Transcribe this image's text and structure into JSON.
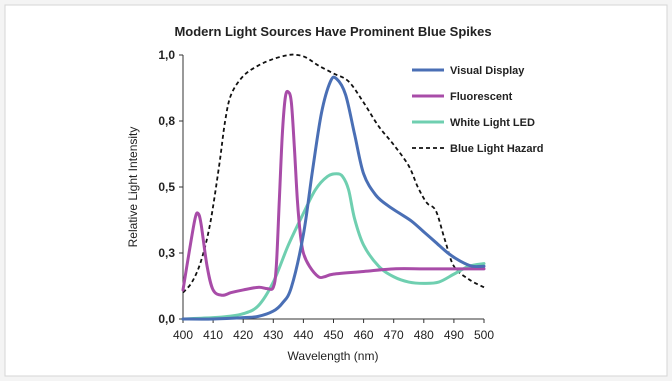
{
  "chart_data": {
    "type": "line",
    "title": "Modern Light Sources Have Prominent Blue Spikes",
    "xlabel": "Wavelength (nm)",
    "ylabel": "Relative Light Intensity",
    "xlim": [
      400,
      500
    ],
    "ylim": [
      0,
      1
    ],
    "x_ticks": [
      400,
      410,
      420,
      430,
      440,
      450,
      460,
      470,
      480,
      490,
      500
    ],
    "x_tick_labels": [
      "400",
      "410",
      "420",
      "430",
      "440",
      "450",
      "460",
      "470",
      "480",
      "490",
      "500"
    ],
    "y_ticks": [
      0,
      0.25,
      0.5,
      0.75,
      1
    ],
    "y_tick_labels": [
      "0,0",
      "0,3",
      "0,5",
      "0,8",
      "1,0"
    ],
    "grid": false,
    "legend_position": "top-right",
    "series": [
      {
        "name": "Visual Display",
        "color": "#4a6fb5",
        "dash": "solid",
        "x": [
          400,
          410,
          420,
          425,
          430,
          433,
          436,
          440,
          443,
          446,
          449,
          451,
          454,
          457,
          460,
          464,
          468,
          472,
          476,
          480,
          484,
          488,
          492,
          496,
          500
        ],
        "y": [
          0.0,
          0.0,
          0.005,
          0.01,
          0.03,
          0.06,
          0.12,
          0.32,
          0.56,
          0.78,
          0.9,
          0.91,
          0.85,
          0.7,
          0.55,
          0.47,
          0.43,
          0.4,
          0.37,
          0.33,
          0.29,
          0.25,
          0.22,
          0.2,
          0.2
        ]
      },
      {
        "name": "Fluorescent",
        "color": "#a84ca8",
        "dash": "solid",
        "x": [
          400,
          402,
          404,
          405,
          406,
          408,
          410,
          413,
          416,
          420,
          425,
          428,
          430,
          431,
          432,
          433,
          434,
          435,
          436,
          437,
          438,
          439,
          440,
          442,
          445,
          447,
          450,
          460,
          470,
          480,
          490,
          500
        ],
        "y": [
          0.11,
          0.25,
          0.38,
          0.4,
          0.36,
          0.2,
          0.11,
          0.09,
          0.1,
          0.11,
          0.12,
          0.115,
          0.12,
          0.2,
          0.45,
          0.7,
          0.84,
          0.86,
          0.82,
          0.65,
          0.45,
          0.32,
          0.25,
          0.2,
          0.16,
          0.16,
          0.17,
          0.18,
          0.19,
          0.19,
          0.19,
          0.19
        ]
      },
      {
        "name": "White Light LED",
        "color": "#6fcfb0",
        "dash": "solid",
        "x": [
          400,
          410,
          415,
          420,
          425,
          430,
          435,
          440,
          444,
          448,
          451,
          453,
          455,
          457,
          460,
          465,
          470,
          475,
          480,
          485,
          490,
          495,
          500
        ],
        "y": [
          0.0,
          0.005,
          0.01,
          0.02,
          0.05,
          0.14,
          0.28,
          0.4,
          0.49,
          0.54,
          0.55,
          0.54,
          0.49,
          0.38,
          0.28,
          0.2,
          0.16,
          0.14,
          0.135,
          0.14,
          0.17,
          0.2,
          0.21
        ]
      },
      {
        "name": "Blue Light Hazard",
        "color": "#111111",
        "dash": "dashed",
        "x": [
          400,
          403,
          406,
          409,
          412,
          414,
          416,
          420,
          425,
          430,
          435,
          438,
          441,
          445,
          450,
          455,
          460,
          465,
          470,
          475,
          478,
          481,
          484,
          487,
          490,
          495,
          500
        ],
        "y": [
          0.1,
          0.14,
          0.22,
          0.36,
          0.58,
          0.75,
          0.85,
          0.92,
          0.96,
          0.985,
          1.0,
          1.0,
          0.99,
          0.96,
          0.93,
          0.9,
          0.82,
          0.73,
          0.66,
          0.58,
          0.5,
          0.44,
          0.41,
          0.3,
          0.2,
          0.15,
          0.12
        ]
      }
    ]
  }
}
